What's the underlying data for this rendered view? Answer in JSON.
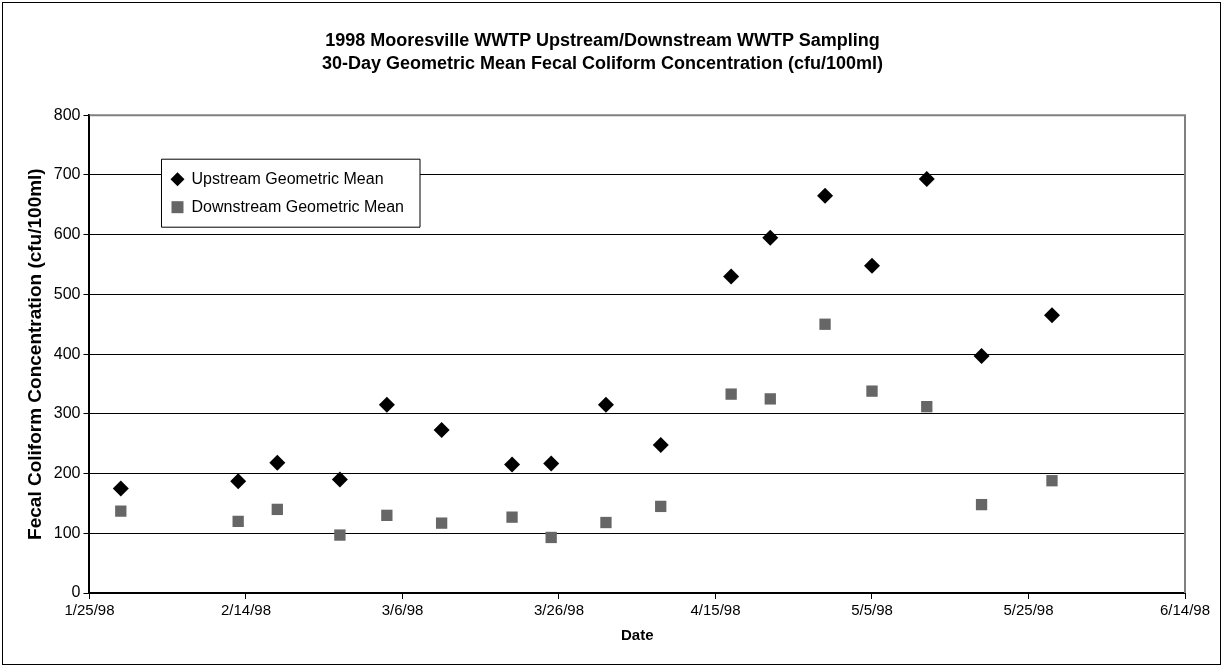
{
  "chart_data": {
    "type": "scatter",
    "title": "1998 Mooresville WWTP Upstream/Downstream WWTP Sampling",
    "subtitle": "30-Day Geometric Mean Fecal Coliform Concentration (cfu/100ml)",
    "xlabel": "Date",
    "ylabel": "Fecal Coliform Concentration (cfu/100ml)",
    "x": [
      "1998-01-29",
      "1998-02-13",
      "1998-02-18",
      "1998-02-26",
      "1998-03-04",
      "1998-03-11",
      "1998-03-20",
      "1998-03-25",
      "1998-04-01",
      "1998-04-08",
      "1998-04-17",
      "1998-04-22",
      "1998-04-29",
      "1998-05-05",
      "1998-05-12",
      "1998-05-19",
      "1998-05-28"
    ],
    "series": [
      {
        "name": "Upstream Geometric Mean",
        "color": "#000000",
        "marker": "diamond",
        "values": [
          175,
          187,
          218,
          190,
          315,
          273,
          215,
          217,
          315,
          248,
          530,
          595,
          665,
          548,
          693,
          397,
          465
        ]
      },
      {
        "name": "Downstream Geometric Mean",
        "color": "#666666",
        "marker": "square",
        "values": [
          137,
          120,
          140,
          97,
          130,
          117,
          127,
          93,
          118,
          145,
          333,
          325,
          450,
          338,
          312,
          148,
          188
        ]
      }
    ],
    "xlim": [
      "1998-01-25",
      "1998-06-14"
    ],
    "xticks": [
      {
        "value": "1998-01-25",
        "label": "1/25/98"
      },
      {
        "value": "1998-02-14",
        "label": "2/14/98"
      },
      {
        "value": "1998-03-06",
        "label": "3/6/98"
      },
      {
        "value": "1998-03-26",
        "label": "3/26/98"
      },
      {
        "value": "1998-04-15",
        "label": "4/15/98"
      },
      {
        "value": "1998-05-05",
        "label": "5/5/98"
      },
      {
        "value": "1998-05-25",
        "label": "5/25/98"
      },
      {
        "value": "1998-06-14",
        "label": "6/14/98"
      }
    ],
    "ylim": [
      0,
      800
    ],
    "yticks": [
      0,
      100,
      200,
      300,
      400,
      500,
      600,
      700,
      800
    ],
    "grid": "y",
    "legend": "top left"
  }
}
